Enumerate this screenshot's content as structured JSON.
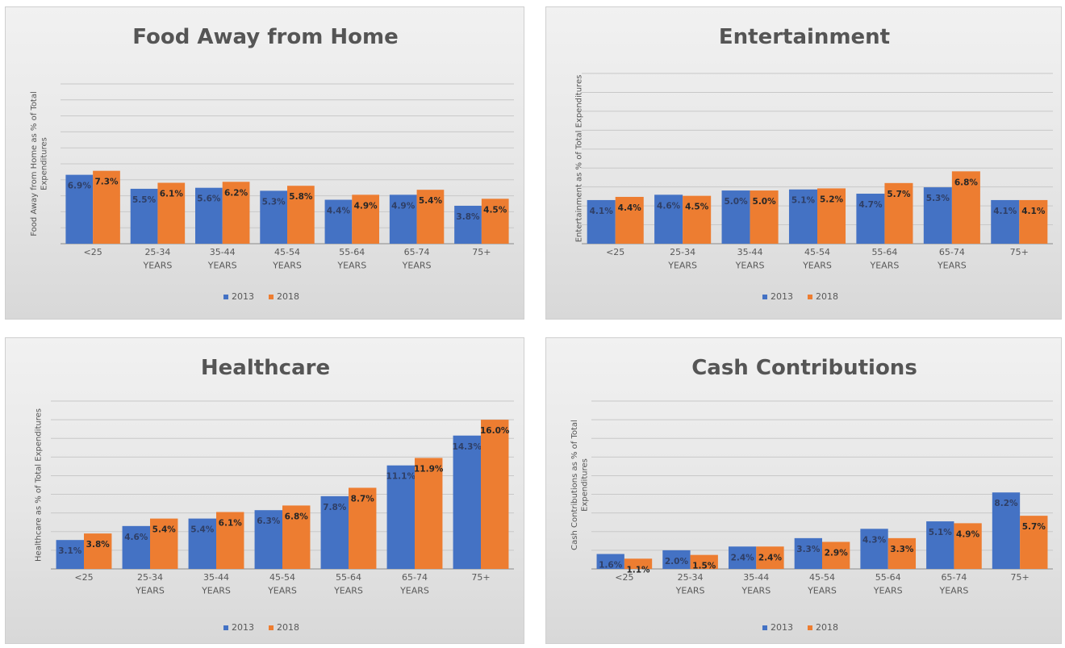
{
  "colors": {
    "s2013": "#4472c4",
    "s2018": "#ed7d31",
    "grid": "#c8c8c8",
    "axis": "#8a8a8a"
  },
  "chart_data": [
    {
      "type": "bar",
      "title": "Food Away from Home",
      "ylabel": "Food Away from Home as % of Total Expenditures",
      "categories": [
        "<25",
        "25-34 YEARS",
        "35-44 YEARS",
        "45-54 YEARS",
        "55-64 YEARS",
        "65-74 YEARS",
        "75+"
      ],
      "series": [
        {
          "name": "2013",
          "values": [
            6.9,
            5.5,
            5.6,
            5.3,
            4.4,
            4.9,
            3.8
          ],
          "labels": [
            "6.9%",
            "5.5%",
            "5.6%",
            "5.3%",
            "4.4%",
            "4.9%",
            "3.8%"
          ]
        },
        {
          "name": "2018",
          "values": [
            7.3,
            6.1,
            6.2,
            5.8,
            4.9,
            5.4,
            4.5
          ],
          "labels": [
            "7.3%",
            "6.1%",
            "6.2%",
            "5.8%",
            "4.9%",
            "5.4%",
            "4.5%"
          ]
        }
      ],
      "ylim": [
        0,
        16
      ],
      "legend": "bottom",
      "grid": true
    },
    {
      "type": "bar",
      "title": "Entertainment",
      "ylabel": "Entertainment as % of Total Expenditures",
      "categories": [
        "<25",
        "25-34 YEARS",
        "35-44 YEARS",
        "45-54 YEARS",
        "55-64 YEARS",
        "65-74 YEARS",
        "75+"
      ],
      "series": [
        {
          "name": "2013",
          "values": [
            4.1,
            4.6,
            5.0,
            5.1,
            4.7,
            5.3,
            4.1
          ],
          "labels": [
            "4.1%",
            "4.6%",
            "5.0%",
            "5.1%",
            "4.7%",
            "5.3%",
            "4.1%"
          ]
        },
        {
          "name": "2018",
          "values": [
            4.4,
            4.5,
            5.0,
            5.2,
            5.7,
            6.8,
            4.1
          ],
          "labels": [
            "4.4%",
            "4.5%",
            "5.0%",
            "5.2%",
            "5.7%",
            "6.8%",
            "4.1%"
          ]
        }
      ],
      "ylim": [
        0,
        16
      ],
      "legend": "bottom",
      "grid": true
    },
    {
      "type": "bar",
      "title": "Healthcare",
      "ylabel": "Healthcare as % of Total Expenditures",
      "categories": [
        "<25",
        "25-34 YEARS",
        "35-44 YEARS",
        "45-54 YEARS",
        "55-64 YEARS",
        "65-74 YEARS",
        "75+"
      ],
      "series": [
        {
          "name": "2013",
          "values": [
            3.1,
            4.6,
            5.4,
            6.3,
            7.8,
            11.1,
            14.3
          ],
          "labels": [
            "3.1%",
            "4.6%",
            "5.4%",
            "6.3%",
            "7.8%",
            "11.1%",
            "14.3%"
          ]
        },
        {
          "name": "2018",
          "values": [
            3.8,
            5.4,
            6.1,
            6.8,
            8.7,
            11.9,
            16.0
          ],
          "labels": [
            "3.8%",
            "5.4%",
            "6.1%",
            "6.8%",
            "8.7%",
            "11.9%",
            "16.0%"
          ]
        }
      ],
      "ylim": [
        0,
        18
      ],
      "legend": "bottom",
      "grid": true
    },
    {
      "type": "bar",
      "title": "Cash Contributions",
      "ylabel": "Cash Contributions as % of Total Expenditures",
      "categories": [
        "<25",
        "25-34 YEARS",
        "35-44 YEARS",
        "45-54 YEARS",
        "55-64 YEARS",
        "65-74 YEARS",
        "75+"
      ],
      "series": [
        {
          "name": "2013",
          "values": [
            1.6,
            2.0,
            2.4,
            3.3,
            4.3,
            5.1,
            8.2
          ],
          "labels": [
            "1.6%",
            "2.0%",
            "2.4%",
            "3.3%",
            "4.3%",
            "5.1%",
            "8.2%"
          ]
        },
        {
          "name": "2018",
          "values": [
            1.1,
            1.5,
            2.4,
            2.9,
            3.3,
            4.9,
            5.7
          ],
          "labels": [
            "1.1%",
            "1.5%",
            "2.4%",
            "2.9%",
            "3.3%",
            "4.9%",
            "5.7%"
          ]
        }
      ],
      "ylim": [
        0,
        18
      ],
      "legend": "bottom",
      "grid": true
    }
  ]
}
